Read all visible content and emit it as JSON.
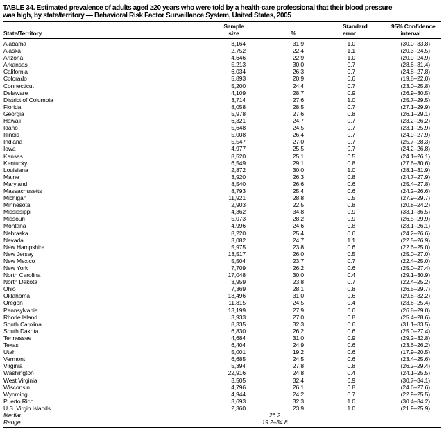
{
  "title": {
    "line1": "TABLE 34. Estimated prevalence of adults aged ≥20 years who were told by a health-care professional that their blood pressure",
    "line2": "was high, by state/territory — Behavioral Risk Factor Surveillance System, United States, 2005"
  },
  "table": {
    "headers": {
      "state": "State/Territory",
      "sample": "Sample\nsize",
      "pct": "%",
      "se": "Standard\nerror",
      "ci": "95% Confidence\ninterval"
    },
    "rows": [
      [
        "Alabama",
        "3,164",
        "31.9",
        "1.0",
        "(30.0–33.8)"
      ],
      [
        "Alaska",
        "2,752",
        "22.4",
        "1.1",
        "(20.3–24.5)"
      ],
      [
        "Arizona",
        "4,646",
        "22.9",
        "1.0",
        "(20.9–24.9)"
      ],
      [
        "Arkansas",
        "5,213",
        "30.0",
        "0.7",
        "(28.6–31.4)"
      ],
      [
        "California",
        "6,034",
        "26.3",
        "0.7",
        "(24.8–27.8)"
      ],
      [
        "Colorado",
        "5,893",
        "20.9",
        "0.6",
        "(19.8–22.0)"
      ],
      [
        "Connecticut",
        "5,200",
        "24.4",
        "0.7",
        "(23.0–25.8)"
      ],
      [
        "Delaware",
        "4,109",
        "28.7",
        "0.9",
        "(26.9–30.5)"
      ],
      [
        "District of Columbia",
        "3,714",
        "27.6",
        "1.0",
        "(25.7–29.5)"
      ],
      [
        "Florida",
        "8,058",
        "28.5",
        "0.7",
        "(27.1–29.9)"
      ],
      [
        "Georgia",
        "5,978",
        "27.6",
        "0.8",
        "(26.1–29.1)"
      ],
      [
        "Hawaii",
        "6,321",
        "24.7",
        "0.7",
        "(23.2–26.2)"
      ],
      [
        "Idaho",
        "5,648",
        "24.5",
        "0.7",
        "(23.1–25.9)"
      ],
      [
        "Illinois",
        "5,008",
        "26.4",
        "0.7",
        "(24.9–27.9)"
      ],
      [
        "Indiana",
        "5,547",
        "27.0",
        "0.7",
        "(25.7–28.3)"
      ],
      [
        "Iowa",
        "4,977",
        "25.5",
        "0.7",
        "(24.2–26.8)"
      ],
      [
        "Kansas",
        "8,520",
        "25.1",
        "0.5",
        "(24.1–26.1)"
      ],
      [
        "Kentucky",
        "6,549",
        "29.1",
        "0.8",
        "(27.6–30.6)"
      ],
      [
        "Louisiana",
        "2,872",
        "30.0",
        "1.0",
        "(28.1–31.9)"
      ],
      [
        "Maine",
        "3,920",
        "26.3",
        "0.8",
        "(24.7–27.9)"
      ],
      [
        "Maryland",
        "8,540",
        "26.6",
        "0.6",
        "(25.4–27.8)"
      ],
      [
        "Massachusetts",
        "8,793",
        "25.4",
        "0.6",
        "(24.2–26.6)"
      ],
      [
        "Michigan",
        "11,921",
        "28.8",
        "0.5",
        "(27.9–29.7)"
      ],
      [
        "Minnesota",
        "2,903",
        "22.5",
        "0.8",
        "(20.8–24.2)"
      ],
      [
        "Mississippi",
        "4,362",
        "34.8",
        "0.9",
        "(33.1–36.5)"
      ],
      [
        "Missouri",
        "5,073",
        "28.2",
        "0.9",
        "(26.5–29.9)"
      ],
      [
        "Montana",
        "4,996",
        "24.6",
        "0.8",
        "(23.1–26.1)"
      ],
      [
        "Nebraska",
        "8,220",
        "25.4",
        "0.6",
        "(24.2–26.6)"
      ],
      [
        "Nevada",
        "3,082",
        "24.7",
        "1.1",
        "(22.5–26.9)"
      ],
      [
        "New Hampshire",
        "5,975",
        "23.8",
        "0.6",
        "(22.6–25.0)"
      ],
      [
        "New Jersey",
        "13,517",
        "26.0",
        "0.5",
        "(25.0–27.0)"
      ],
      [
        "New Mexico",
        "5,504",
        "23.7",
        "0.7",
        "(22.4–25.0)"
      ],
      [
        "New York",
        "7,709",
        "26.2",
        "0.6",
        "(25.0–27.4)"
      ],
      [
        "North Carolina",
        "17,048",
        "30.0",
        "0.4",
        "(29.1–30.9)"
      ],
      [
        "North Dakota",
        "3,959",
        "23.8",
        "0.7",
        "(22.4–25.2)"
      ],
      [
        "Ohio",
        "7,369",
        "28.1",
        "0.8",
        "(26.5–29.7)"
      ],
      [
        "Oklahoma",
        "13,496",
        "31.0",
        "0.6",
        "(29.8–32.2)"
      ],
      [
        "Oregon",
        "11,815",
        "24.5",
        "0.4",
        "(23.6–25.4)"
      ],
      [
        "Pennsylvania",
        "13,199",
        "27.9",
        "0.6",
        "(26.8–29.0)"
      ],
      [
        "Rhode Island",
        "3,933",
        "27.0",
        "0.8",
        "(25.4–28.6)"
      ],
      [
        "South Carolina",
        "8,335",
        "32.3",
        "0.6",
        "(31.1–33.5)"
      ],
      [
        "South Dakota",
        "6,830",
        "26.2",
        "0.6",
        "(25.0–27.4)"
      ],
      [
        "Tennessee",
        "4,684",
        "31.0",
        "0.9",
        "(29.2–32.8)"
      ],
      [
        "Texas",
        "6,404",
        "24.9",
        "0.6",
        "(23.6–26.2)"
      ],
      [
        "Utah",
        "5,001",
        "19.2",
        "0.6",
        "(17.9–20.5)"
      ],
      [
        "Vermont",
        "6,685",
        "24.5",
        "0.6",
        "(23.4–25.6)"
      ],
      [
        "Virginia",
        "5,394",
        "27.8",
        "0.8",
        "(26.2–29.4)"
      ],
      [
        "Washington",
        "22,916",
        "24.8",
        "0.4",
        "(24.1–25.5)"
      ],
      [
        "West Virginia",
        "3,505",
        "32.4",
        "0.9",
        "(30.7–34.1)"
      ],
      [
        "Wisconsin",
        "4,796",
        "26.1",
        "0.8",
        "(24.6–27.6)"
      ],
      [
        "Wyoming",
        "4,944",
        "24.2",
        "0.7",
        "(22.9–25.5)"
      ],
      [
        "Puerto Rico",
        "3,693",
        "32.3",
        "1.0",
        "(30.4–34.2)"
      ],
      [
        "U.S. Virgin Islands",
        "2,360",
        "23.9",
        "1.0",
        "(21.9–25.9)"
      ]
    ],
    "summary_rows": [
      {
        "label": "Median",
        "value": "26.2"
      },
      {
        "label": "Range",
        "value": "19.2–34.8"
      }
    ]
  }
}
